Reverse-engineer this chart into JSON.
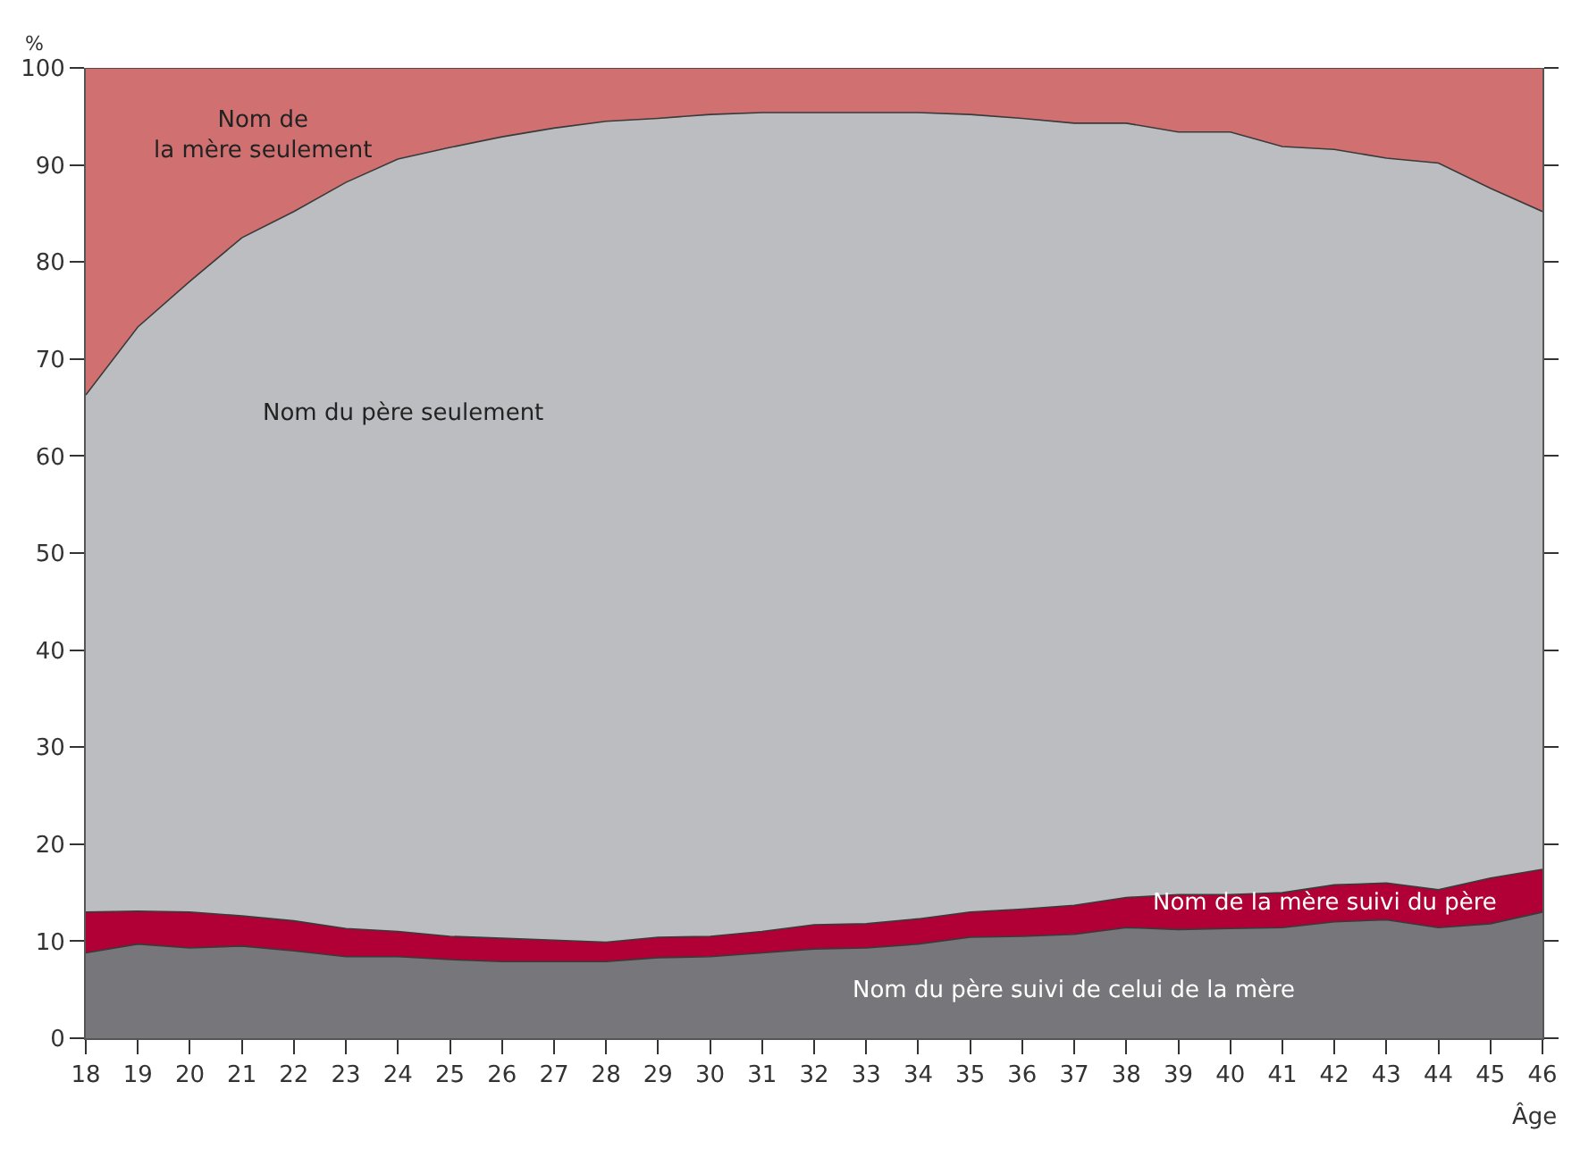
{
  "chart_data": {
    "type": "area",
    "stacked": true,
    "xlabel": "Âge",
    "ylabel": "%",
    "x": [
      18,
      19,
      20,
      21,
      22,
      23,
      24,
      25,
      26,
      27,
      28,
      29,
      30,
      31,
      32,
      33,
      34,
      35,
      36,
      37,
      38,
      39,
      40,
      41,
      42,
      43,
      44,
      45,
      46
    ],
    "series": [
      {
        "name": "Nom du père suivi de celui de la mère",
        "color": "#77777b",
        "values": [
          8.8,
          9.7,
          9.3,
          9.5,
          9.0,
          8.4,
          8.4,
          8.1,
          7.9,
          7.9,
          7.9,
          8.3,
          8.4,
          8.8,
          9.2,
          9.3,
          9.7,
          10.4,
          10.5,
          10.7,
          11.4,
          11.2,
          11.3,
          11.4,
          12.0,
          12.2,
          11.4,
          11.8,
          13.0
        ]
      },
      {
        "name": "Nom de la mère suivi du père",
        "color": "#b00035",
        "values": [
          4.2,
          3.4,
          3.7,
          3.1,
          3.1,
          2.9,
          2.6,
          2.4,
          2.4,
          2.2,
          2.0,
          2.1,
          2.1,
          2.2,
          2.5,
          2.5,
          2.6,
          2.6,
          2.8,
          3.0,
          3.1,
          3.6,
          3.5,
          3.6,
          3.8,
          3.8,
          3.9,
          4.7,
          4.4
        ]
      },
      {
        "name": "Nom du père seulement",
        "color": "#bcbdc1",
        "values": [
          53.3,
          60.2,
          65.0,
          69.9,
          73.1,
          76.9,
          79.6,
          81.3,
          82.6,
          83.7,
          84.6,
          84.4,
          84.7,
          84.4,
          83.7,
          83.6,
          83.1,
          82.2,
          81.5,
          80.6,
          79.8,
          78.6,
          78.6,
          76.9,
          75.8,
          74.7,
          74.9,
          71.1,
          67.8
        ]
      },
      {
        "name": "Nom de\nla mère seulement",
        "color": "#d07070",
        "values": [
          33.7,
          26.7,
          22.0,
          17.5,
          14.8,
          11.8,
          9.4,
          8.2,
          7.1,
          6.2,
          5.5,
          5.2,
          4.8,
          4.6,
          4.6,
          4.6,
          4.6,
          4.8,
          5.2,
          5.7,
          5.7,
          6.6,
          6.6,
          8.1,
          8.4,
          9.3,
          9.8,
          12.4,
          14.8
        ]
      }
    ],
    "xlim": [
      18,
      46
    ],
    "xticks": [
      18,
      19,
      20,
      21,
      22,
      23,
      24,
      25,
      26,
      27,
      28,
      29,
      30,
      31,
      32,
      33,
      34,
      35,
      36,
      37,
      38,
      39,
      40,
      41,
      42,
      43,
      44,
      45,
      46
    ],
    "ylim": [
      0,
      100
    ],
    "yticks": [
      0,
      10,
      20,
      30,
      40,
      50,
      60,
      70,
      80,
      90,
      100
    ],
    "legend": false
  }
}
